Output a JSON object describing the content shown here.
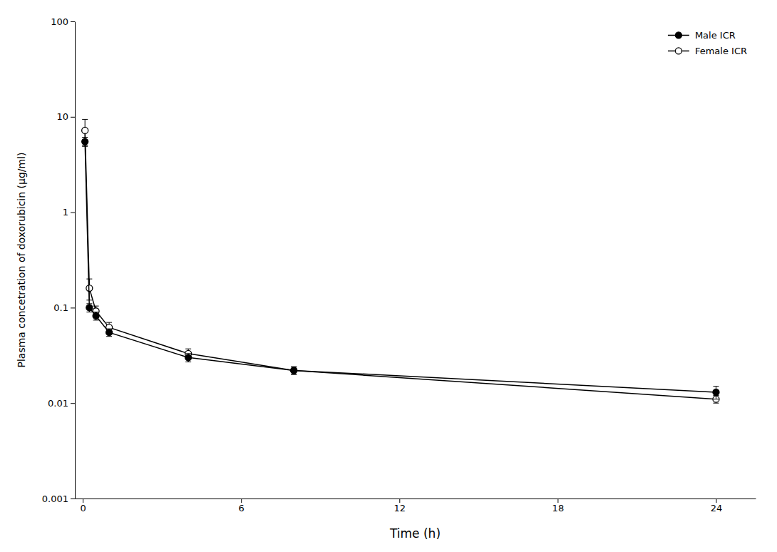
{
  "chart_data": {
    "type": "line",
    "xlabel": "Time (h)",
    "ylabel": "Plasma concetration of doxorubicin (μg/ml)",
    "x": [
      0.083,
      0.25,
      0.5,
      1.0,
      4.0,
      8.0,
      24.0
    ],
    "series": [
      {
        "name": "Male ICR",
        "color": "black",
        "marker": "circle",
        "values": [
          5.5,
          0.1,
          0.082,
          0.055,
          0.03,
          0.022,
          0.013
        ],
        "error_low": [
          0.6,
          0.01,
          0.008,
          0.005,
          0.003,
          0.002,
          0.002
        ],
        "error_high": [
          0.6,
          0.01,
          0.008,
          0.005,
          0.003,
          0.002,
          0.002
        ]
      },
      {
        "name": "Female ICR",
        "color": "black",
        "marker": "circle-open",
        "values": [
          7.2,
          0.16,
          0.092,
          0.062,
          0.033,
          0.022,
          0.011
        ],
        "error_low": [
          2.2,
          0.04,
          0.012,
          0.008,
          0.004,
          0.002,
          0.001
        ],
        "error_high": [
          2.2,
          0.04,
          0.012,
          0.008,
          0.004,
          0.002,
          0.001
        ]
      }
    ],
    "xlim": [
      -0.3,
      25.5
    ],
    "xticks": [
      0,
      6,
      12,
      18,
      24
    ],
    "ylim": [
      0.001,
      100
    ],
    "yticks": [
      0.001,
      0.01,
      0.1,
      1,
      10,
      100
    ],
    "log": "y",
    "grid": false,
    "legend": "upper-right"
  }
}
